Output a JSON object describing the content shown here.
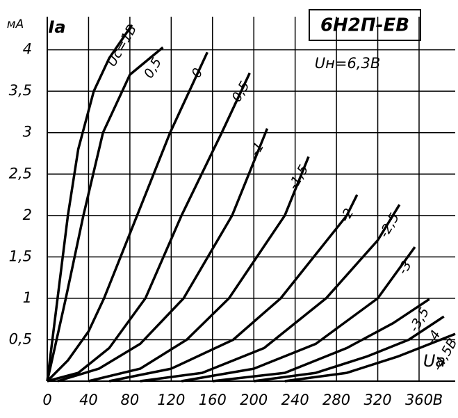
{
  "chart_data": {
    "type": "line",
    "title": "6Н2П-ЕВ",
    "subtitle": "Uн=6,3В",
    "y_unit": "мА",
    "y_label": "Iа",
    "x_unit": "В",
    "x_label": "Ua",
    "xlim": [
      0,
      395
    ],
    "ylim": [
      0,
      4.4
    ],
    "xticks": [
      0,
      40,
      80,
      120,
      160,
      200,
      240,
      280,
      320,
      360
    ],
    "yticks": [
      {
        "value": 0.5,
        "label": "0,5"
      },
      1,
      {
        "value": 1.5,
        "label": "1,5"
      },
      2,
      {
        "value": 2.5,
        "label": "2,5"
      },
      3,
      {
        "value": 3.5,
        "label": "3,5"
      },
      4
    ],
    "grid": true,
    "color": "#000000",
    "series": [
      {
        "name": "Uc=1В",
        "x": [
          0,
          5,
          12,
          20,
          30,
          45,
          60,
          82
        ],
        "values": [
          0,
          0.5,
          1.2,
          2,
          2.8,
          3.5,
          3.9,
          4.3
        ]
      },
      {
        "name": "0,5",
        "x": [
          0,
          9,
          18,
          35,
          54,
          80,
          112
        ],
        "values": [
          0,
          0.5,
          1,
          2,
          3,
          3.7,
          4.03
        ]
      },
      {
        "name": "0",
        "x": [
          0,
          20,
          40,
          55,
          87,
          119,
          155
        ],
        "values": [
          0,
          0.25,
          0.6,
          1,
          2,
          3,
          3.97
        ]
      },
      {
        "name": "-0,5",
        "x": [
          0,
          30,
          60,
          95,
          130,
          169,
          196
        ],
        "values": [
          0,
          0.1,
          0.4,
          1,
          2,
          3,
          3.72
        ]
      },
      {
        "name": "-1",
        "x": [
          10,
          50,
          90,
          132,
          179,
          213
        ],
        "values": [
          0,
          0.15,
          0.45,
          1,
          2,
          3.05
        ]
      },
      {
        "name": "-1,5",
        "x": [
          40,
          90,
          135,
          176,
          230,
          253
        ],
        "values": [
          0,
          0.15,
          0.5,
          1,
          2,
          2.71
        ]
      },
      {
        "name": "-2",
        "x": [
          60,
          120,
          180,
          226,
          290,
          300
        ],
        "values": [
          0,
          0.15,
          0.5,
          1,
          2,
          2.25
        ]
      },
      {
        "name": "-2,5",
        "x": [
          90,
          150,
          210,
          270,
          320,
          341
        ],
        "values": [
          0,
          0.1,
          0.4,
          1,
          1.7,
          2.13
        ]
      },
      {
        "name": "-3",
        "x": [
          130,
          200,
          260,
          320,
          356
        ],
        "values": [
          0,
          0.15,
          0.45,
          1,
          1.62
        ]
      },
      {
        "name": "-3,5",
        "x": [
          160,
          230,
          290,
          335,
          370
        ],
        "values": [
          0,
          0.1,
          0.4,
          0.7,
          0.99
        ]
      },
      {
        "name": "-4",
        "x": [
          200,
          260,
          310,
          350,
          384
        ],
        "values": [
          0,
          0.1,
          0.3,
          0.5,
          0.78
        ]
      },
      {
        "name": "-4,5В",
        "x": [
          230,
          290,
          340,
          395
        ],
        "values": [
          0,
          0.1,
          0.3,
          0.57
        ]
      }
    ]
  }
}
